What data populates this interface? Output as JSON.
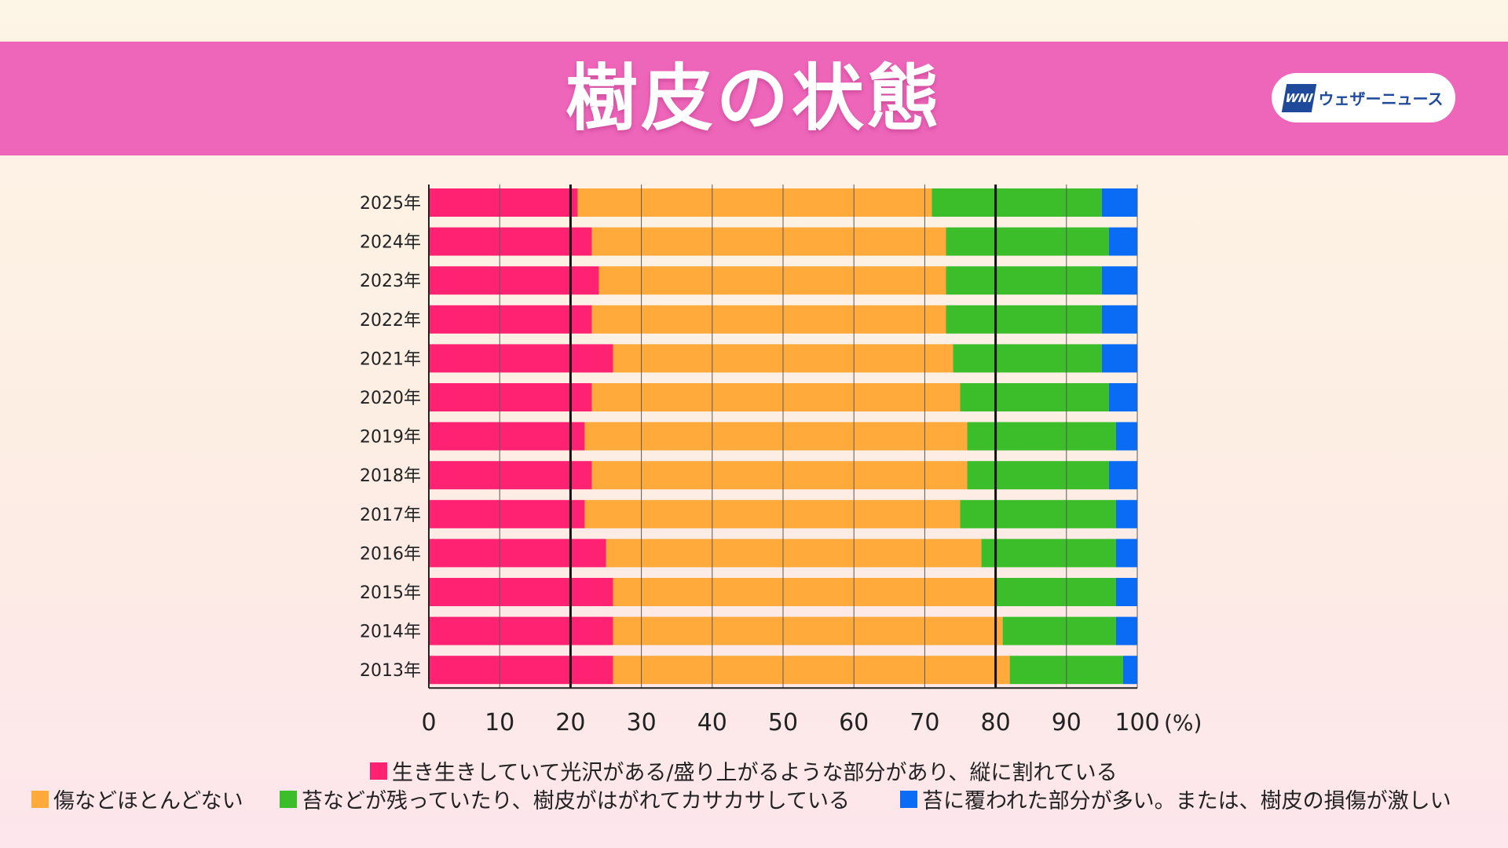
{
  "header": {
    "title": "樹皮の状態",
    "logo_mark": "WNI",
    "logo_text": "ウェザーニュース"
  },
  "chart_data": {
    "type": "bar",
    "orientation": "horizontal",
    "stacked": true,
    "title": "樹皮の状態",
    "categories": [
      "2025年",
      "2024年",
      "2023年",
      "2022年",
      "2021年",
      "2020年",
      "2019年",
      "2018年",
      "2017年",
      "2016年",
      "2015年",
      "2014年",
      "2013年"
    ],
    "series": [
      {
        "name": "生き生きしていて光沢がある/盛り上がるような部分があり、縦に割れている",
        "color": "#ff2272",
        "values": [
          21,
          23,
          24,
          23,
          26,
          23,
          22,
          23,
          22,
          25,
          26,
          26,
          26
        ]
      },
      {
        "name": "傷などほとんどない",
        "color": "#ffaa3a",
        "values": [
          50,
          50,
          49,
          50,
          48,
          52,
          54,
          53,
          53,
          53,
          54,
          55,
          56
        ]
      },
      {
        "name": "苔などが残っていたり、樹皮がはがれてカサカサしている",
        "color": "#3cbd2a",
        "values": [
          24,
          23,
          22,
          22,
          21,
          21,
          21,
          20,
          22,
          19,
          17,
          16,
          16
        ]
      },
      {
        "name": "苔に覆われた部分が多い。または、樹皮の損傷が激しい",
        "color": "#0a6cf5",
        "values": [
          5,
          4,
          5,
          5,
          5,
          4,
          3,
          4,
          3,
          3,
          3,
          3,
          2
        ]
      }
    ],
    "xlim": [
      0,
      100
    ],
    "xticks": [
      "0",
      "10",
      "20",
      "30",
      "40",
      "50",
      "60",
      "70",
      "80",
      "90",
      "100"
    ],
    "x_unit": "(%)",
    "reference_lines": [
      20,
      80
    ],
    "grid": true,
    "legend": "bottom"
  }
}
